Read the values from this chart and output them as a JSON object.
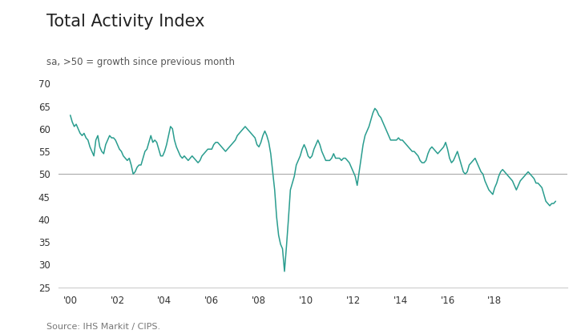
{
  "title": "Total Activity Index",
  "subtitle": "sa, >50 = growth since previous month",
  "source": "Source: IHS Markit / CIPS.",
  "line_color": "#2a9d8f",
  "background_color": "#ffffff",
  "ylim": [
    25,
    70
  ],
  "yticks": [
    25,
    30,
    35,
    40,
    45,
    50,
    55,
    60,
    65,
    70
  ],
  "hline_y": 50,
  "hline_color": "#aaaaaa",
  "x_tick_labels": [
    "'00",
    "'02",
    "'04",
    "'06",
    "'08",
    "'10",
    "'12",
    "'14",
    "'16",
    "'18"
  ],
  "x_tick_positions": [
    2000,
    2002,
    2004,
    2006,
    2008,
    2010,
    2012,
    2014,
    2016,
    2018
  ],
  "values": [
    63.0,
    61.5,
    60.5,
    61.0,
    60.0,
    59.0,
    58.5,
    59.0,
    58.0,
    57.5,
    56.0,
    55.0,
    54.0,
    57.5,
    58.5,
    56.0,
    55.0,
    54.5,
    56.5,
    57.5,
    58.5,
    58.0,
    58.0,
    57.5,
    56.5,
    55.5,
    55.0,
    54.0,
    53.5,
    53.0,
    53.5,
    52.0,
    50.0,
    50.5,
    51.5,
    52.0,
    52.0,
    53.5,
    55.0,
    55.5,
    57.0,
    58.5,
    57.0,
    57.5,
    57.0,
    55.5,
    54.0,
    54.0,
    55.0,
    56.5,
    58.5,
    60.5,
    60.0,
    57.5,
    56.0,
    55.0,
    54.0,
    53.5,
    54.0,
    53.5,
    53.0,
    53.5,
    54.0,
    53.5,
    53.0,
    52.5,
    53.0,
    54.0,
    54.5,
    55.0,
    55.5,
    55.5,
    55.5,
    56.5,
    57.0,
    57.0,
    56.5,
    56.0,
    55.5,
    55.0,
    55.5,
    56.0,
    56.5,
    57.0,
    57.5,
    58.5,
    59.0,
    59.5,
    60.0,
    60.5,
    60.0,
    59.5,
    59.0,
    58.5,
    58.0,
    56.5,
    56.0,
    57.0,
    58.5,
    59.5,
    58.5,
    57.0,
    54.5,
    50.5,
    46.5,
    40.5,
    36.5,
    34.5,
    33.5,
    28.5,
    34.0,
    40.0,
    46.5,
    48.0,
    49.5,
    52.0,
    53.0,
    54.0,
    55.5,
    56.5,
    55.5,
    54.0,
    53.5,
    54.0,
    55.5,
    56.5,
    57.5,
    56.5,
    55.0,
    54.0,
    53.0,
    53.0,
    53.0,
    53.5,
    54.5,
    53.5,
    53.5,
    53.5,
    53.0,
    53.5,
    53.5,
    53.0,
    52.5,
    51.5,
    50.5,
    49.5,
    47.5,
    50.5,
    53.5,
    56.5,
    58.5,
    59.5,
    60.5,
    62.0,
    63.5,
    64.5,
    64.0,
    63.0,
    62.5,
    61.5,
    60.5,
    59.5,
    58.5,
    57.5,
    57.5,
    57.5,
    57.5,
    58.0,
    57.5,
    57.5,
    57.0,
    56.5,
    56.0,
    55.5,
    55.0,
    55.0,
    54.5,
    54.0,
    53.0,
    52.5,
    52.5,
    53.0,
    54.5,
    55.5,
    56.0,
    55.5,
    55.0,
    54.5,
    55.0,
    55.5,
    56.0,
    57.0,
    55.5,
    53.5,
    52.5,
    53.0,
    54.0,
    55.0,
    53.5,
    52.0,
    50.5,
    50.0,
    50.5,
    52.0,
    52.5,
    53.0,
    53.5,
    52.5,
    51.5,
    50.5,
    50.0,
    48.5,
    47.5,
    46.5,
    46.0,
    45.5,
    47.0,
    48.0,
    49.5,
    50.5,
    51.0,
    50.5,
    50.0,
    49.5,
    49.0,
    48.5,
    47.5,
    46.5,
    47.5,
    48.5,
    49.0,
    49.5,
    50.0,
    50.5,
    50.0,
    49.5,
    49.0,
    48.0,
    48.0,
    47.5,
    47.0,
    45.5,
    44.0,
    43.5,
    43.0,
    43.5,
    43.5,
    44.0
  ]
}
